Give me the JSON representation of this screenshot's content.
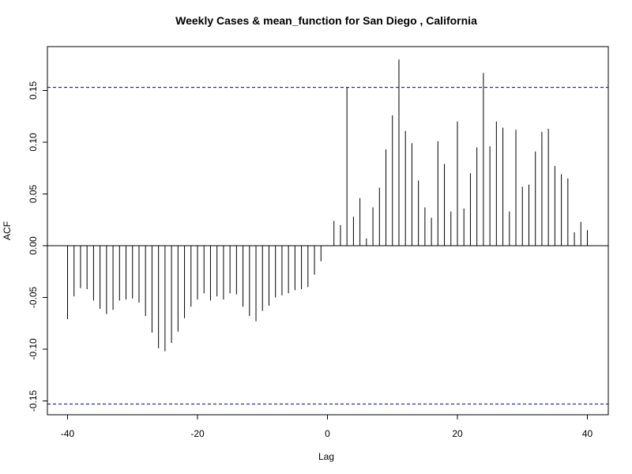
{
  "chart_data": {
    "type": "bar",
    "title": "Weekly Cases & mean_function for San Diego , California",
    "xlabel": "Lag",
    "ylabel": "ACF",
    "xlim": [
      -40,
      40
    ],
    "ylim": [
      -0.16,
      0.19
    ],
    "x_ticks": [
      -40,
      -20,
      0,
      20,
      40
    ],
    "x_tick_labels": [
      "-40",
      "-20",
      "0",
      "20",
      "40"
    ],
    "y_ticks": [
      -0.15,
      -0.1,
      -0.05,
      0.0,
      0.05,
      0.1,
      0.15
    ],
    "y_tick_labels": [
      "-0.15",
      "-0.10",
      "-0.05",
      "0.00",
      "0.05",
      "0.10",
      "0.15"
    ],
    "confidence_bound": 0.153,
    "colors": {
      "bars": "#000000",
      "confidence_lines": "#00008b"
    },
    "lags": [
      -40,
      -39,
      -38,
      -37,
      -36,
      -35,
      -34,
      -33,
      -32,
      -31,
      -30,
      -29,
      -28,
      -27,
      -26,
      -25,
      -24,
      -23,
      -22,
      -21,
      -20,
      -19,
      -18,
      -17,
      -16,
      -15,
      -14,
      -13,
      -12,
      -11,
      -10,
      -9,
      -8,
      -7,
      -6,
      -5,
      -4,
      -3,
      -2,
      -1,
      0,
      1,
      2,
      3,
      4,
      5,
      6,
      7,
      8,
      9,
      10,
      11,
      12,
      13,
      14,
      15,
      16,
      17,
      18,
      19,
      20,
      21,
      22,
      23,
      24,
      25,
      26,
      27,
      28,
      29,
      30,
      31,
      32,
      33,
      34,
      35,
      36,
      37,
      38,
      39,
      40
    ],
    "acf": [
      -0.071,
      -0.049,
      -0.041,
      -0.042,
      -0.053,
      -0.061,
      -0.066,
      -0.062,
      -0.053,
      -0.052,
      -0.051,
      -0.055,
      -0.068,
      -0.084,
      -0.099,
      -0.102,
      -0.094,
      -0.083,
      -0.07,
      -0.059,
      -0.052,
      -0.046,
      -0.053,
      -0.049,
      -0.052,
      -0.046,
      -0.047,
      -0.059,
      -0.068,
      -0.073,
      -0.063,
      -0.058,
      -0.05,
      -0.048,
      -0.046,
      -0.043,
      -0.042,
      -0.04,
      -0.028,
      -0.015,
      0.0,
      0.024,
      0.02,
      0.153,
      0.028,
      0.046,
      0.007,
      0.037,
      0.056,
      0.093,
      0.126,
      0.18,
      0.111,
      0.099,
      0.063,
      0.037,
      0.027,
      0.101,
      0.079,
      0.033,
      0.12,
      0.036,
      0.07,
      0.095,
      0.167,
      0.096,
      0.12,
      0.114,
      0.033,
      0.112,
      0.057,
      0.059,
      0.091,
      0.11,
      0.113,
      0.077,
      0.069,
      0.065,
      0.013,
      0.023,
      0.015
    ]
  }
}
